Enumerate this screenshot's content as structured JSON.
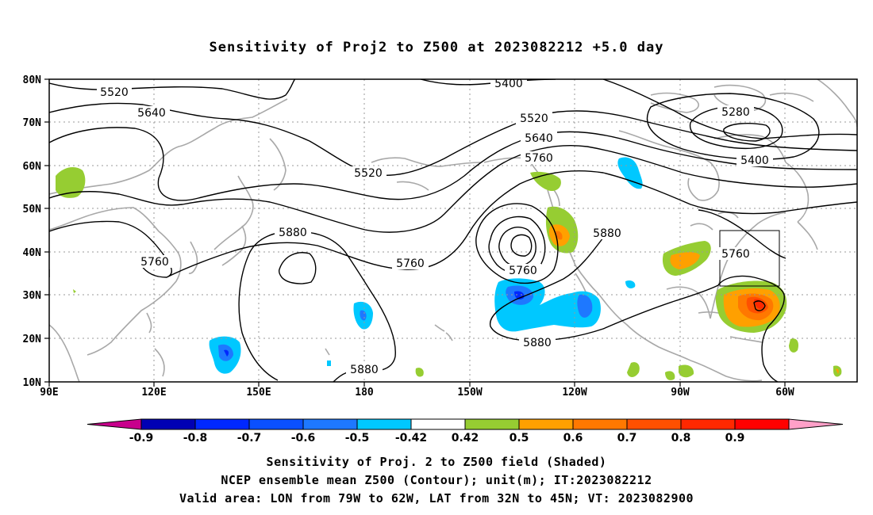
{
  "title": "Sensitivity of Proj2 to Z500 at 2023082212 +5.0 day",
  "map": {
    "lat_labels": [
      "80N",
      "70N",
      "60N",
      "50N",
      "40N",
      "30N",
      "20N",
      "10N"
    ],
    "lon_labels": [
      "90E",
      "120E",
      "150E",
      "180",
      "150W",
      "120W",
      "90W",
      "60W"
    ],
    "contour_labels": [
      "5520",
      "5640",
      "5520",
      "5400",
      "5520",
      "5640",
      "5760",
      "5280",
      "5400",
      "5880",
      "5760",
      "5760",
      "5880",
      "5760",
      "5880",
      "5880",
      "5760"
    ],
    "valid_area_box": {
      "lon": [
        "79W",
        "62W"
      ],
      "lat": [
        "32N",
        "45N"
      ]
    }
  },
  "colorbar": {
    "labels": [
      "-0.9",
      "-0.8",
      "-0.7",
      "-0.6",
      "-0.5",
      "-0.42",
      "0.42",
      "0.5",
      "0.6",
      "0.7",
      "0.8",
      "0.9"
    ],
    "colors": [
      "#0000b4",
      "#0028ff",
      "#0a50ff",
      "#1e78ff",
      "#00c8ff",
      "#ffffff",
      "#96cd32",
      "#ffa000",
      "#ff7800",
      "#ff5000",
      "#ff2800",
      "#ff0000"
    ],
    "left_arrow_color": "#c8008c",
    "right_arrow_color": "#ffa0c8"
  },
  "captions": {
    "line1": "Sensitivity of Proj. 2 to Z500 field (Shaded)",
    "line2": "NCEP ensemble mean Z500 (Contour); unit(m); IT:2023082212",
    "line3": "Valid area: LON from 79W to 62W, LAT from 32N to 45N; VT: 2023082900"
  }
}
